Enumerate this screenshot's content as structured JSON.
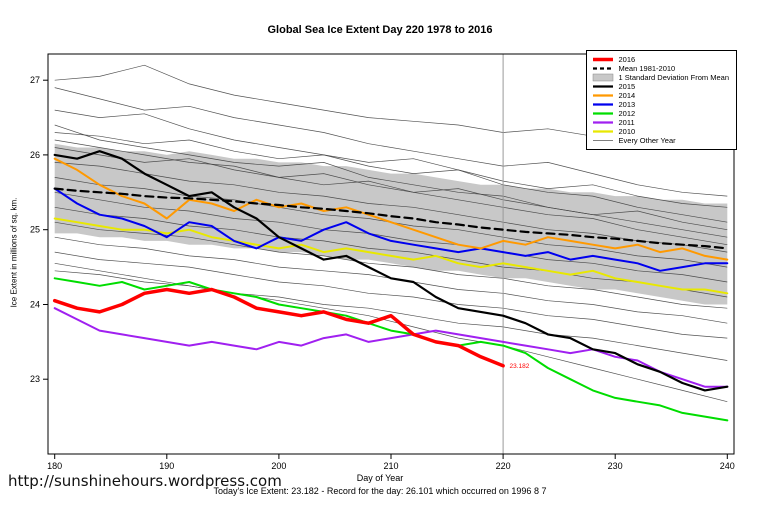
{
  "page": {
    "site_link": "http://sunshinehours.wordpress.com"
  },
  "chart_data": {
    "type": "line",
    "title": "Global Sea Ice Extent Day 220 1978 to 2016",
    "xlabel": "Day of Year",
    "ylabel": "Ice Extent in millions of sq. km.",
    "footnote": "Today's Ice Extent: 23.182  - Record for the day: 26.101 which occurred on 1996 8 7",
    "xlim": [
      179.4,
      240.6
    ],
    "ylim": [
      22.0,
      27.35
    ],
    "xticks": [
      180,
      190,
      200,
      210,
      220,
      230,
      240
    ],
    "yticks": [
      23,
      24,
      25,
      26,
      27
    ],
    "vline_x": 220,
    "vline_color": "#999999",
    "annotation": {
      "x": 220.3,
      "y": 23.18,
      "text": "23.182",
      "color": "#ff0000"
    },
    "x_main": [
      180,
      182,
      184,
      186,
      188,
      190,
      192,
      194,
      196,
      198,
      200,
      202,
      204,
      206,
      208,
      210,
      212,
      214,
      216,
      218,
      220,
      222,
      224,
      226,
      228,
      230,
      232,
      234,
      236,
      238,
      240
    ],
    "band": {
      "label": "1 Standard Deviation From Mean",
      "fill": "#c8c8c8",
      "upper": [
        26.15,
        26.1,
        26.1,
        26.05,
        26.05,
        26.0,
        26.05,
        26.0,
        25.95,
        25.95,
        25.9,
        25.9,
        25.85,
        25.85,
        25.8,
        25.75,
        25.75,
        25.7,
        25.65,
        25.6,
        25.6,
        25.55,
        25.55,
        25.5,
        25.5,
        25.45,
        25.45,
        25.4,
        25.4,
        25.35,
        25.35
      ],
      "lower": [
        24.95,
        24.95,
        24.9,
        24.9,
        24.85,
        24.85,
        24.8,
        24.8,
        24.75,
        24.75,
        24.7,
        24.7,
        24.65,
        24.6,
        24.6,
        24.55,
        24.5,
        24.45,
        24.45,
        24.4,
        24.35,
        24.35,
        24.3,
        24.25,
        24.2,
        24.2,
        24.15,
        24.1,
        24.05,
        24.0,
        24.0
      ]
    },
    "series": [
      {
        "name": "2010",
        "color": "#e8e800",
        "width": 2,
        "values": [
          25.15,
          25.1,
          25.05,
          25.0,
          25.0,
          24.95,
          25.0,
          24.9,
          24.85,
          24.8,
          24.75,
          24.8,
          24.7,
          24.75,
          24.7,
          24.65,
          24.6,
          24.65,
          24.55,
          24.5,
          24.55,
          24.5,
          24.45,
          24.4,
          24.45,
          24.35,
          24.3,
          24.25,
          24.2,
          24.2,
          24.15
        ]
      },
      {
        "name": "2011",
        "color": "#a020f0",
        "width": 2,
        "values": [
          23.95,
          23.8,
          23.65,
          23.6,
          23.55,
          23.5,
          23.45,
          23.5,
          23.45,
          23.4,
          23.5,
          23.45,
          23.55,
          23.6,
          23.5,
          23.55,
          23.6,
          23.65,
          23.6,
          23.55,
          23.5,
          23.45,
          23.4,
          23.35,
          23.4,
          23.3,
          23.25,
          23.1,
          23.0,
          22.9,
          22.9
        ]
      },
      {
        "name": "2012",
        "color": "#00dd00",
        "width": 2,
        "values": [
          24.35,
          24.3,
          24.25,
          24.3,
          24.2,
          24.25,
          24.3,
          24.2,
          24.15,
          24.1,
          24.0,
          23.95,
          23.9,
          23.85,
          23.75,
          23.65,
          23.6,
          23.5,
          23.45,
          23.5,
          23.45,
          23.35,
          23.15,
          23.0,
          22.85,
          22.75,
          22.7,
          22.65,
          22.55,
          22.5,
          22.45
        ]
      },
      {
        "name": "2013",
        "color": "#0000ee",
        "width": 2,
        "values": [
          25.55,
          25.35,
          25.2,
          25.15,
          25.05,
          24.9,
          25.1,
          25.05,
          24.85,
          24.75,
          24.9,
          24.85,
          25.0,
          25.1,
          24.95,
          24.85,
          24.8,
          24.75,
          24.7,
          24.75,
          24.7,
          24.65,
          24.7,
          24.6,
          24.65,
          24.6,
          24.55,
          24.45,
          24.5,
          24.55,
          24.55
        ]
      },
      {
        "name": "2014",
        "color": "#ff9900",
        "width": 2,
        "values": [
          25.95,
          25.8,
          25.6,
          25.45,
          25.35,
          25.15,
          25.4,
          25.35,
          25.25,
          25.4,
          25.3,
          25.35,
          25.25,
          25.3,
          25.2,
          25.1,
          25.0,
          24.9,
          24.8,
          24.75,
          24.85,
          24.8,
          24.9,
          24.85,
          24.8,
          24.75,
          24.8,
          24.7,
          24.75,
          24.65,
          24.6
        ]
      },
      {
        "name": "2015",
        "color": "#000000",
        "width": 2.2,
        "values": [
          26.0,
          25.95,
          26.05,
          25.95,
          25.75,
          25.6,
          25.45,
          25.5,
          25.3,
          25.15,
          24.9,
          24.75,
          24.6,
          24.65,
          24.5,
          24.35,
          24.3,
          24.1,
          23.95,
          23.9,
          23.85,
          23.75,
          23.6,
          23.55,
          23.4,
          23.35,
          23.2,
          23.1,
          22.95,
          22.85,
          22.9
        ]
      },
      {
        "name": "Mean 1981-2010",
        "color": "#000000",
        "width": 2.2,
        "dash": "8,5",
        "values": [
          25.55,
          25.52,
          25.5,
          25.48,
          25.45,
          25.43,
          25.42,
          25.4,
          25.38,
          25.35,
          25.33,
          25.3,
          25.28,
          25.25,
          25.22,
          25.18,
          25.15,
          25.1,
          25.07,
          25.03,
          25.0,
          24.97,
          24.95,
          24.93,
          24.9,
          24.88,
          24.85,
          24.82,
          24.8,
          24.78,
          24.75
        ]
      },
      {
        "name": "2016",
        "color": "#ff0000",
        "width": 3.5,
        "x": [
          180,
          182,
          184,
          186,
          188,
          190,
          192,
          194,
          196,
          198,
          200,
          202,
          204,
          206,
          208,
          210,
          212,
          214,
          216,
          218,
          220
        ],
        "values": [
          24.05,
          23.95,
          23.9,
          24.0,
          24.15,
          24.2,
          24.15,
          24.2,
          24.1,
          23.95,
          23.9,
          23.85,
          23.9,
          23.8,
          23.75,
          23.85,
          23.6,
          23.5,
          23.45,
          23.3,
          23.18
        ]
      }
    ],
    "background": {
      "label": "Every Other Year",
      "color": "#3f3f3f",
      "width": 0.7,
      "x": [
        180,
        184,
        188,
        192,
        196,
        200,
        204,
        208,
        212,
        216,
        220,
        224,
        228,
        232,
        236,
        240
      ],
      "lines": [
        [
          27.0,
          27.05,
          27.2,
          26.95,
          26.8,
          26.7,
          26.6,
          26.5,
          26.45,
          26.4,
          26.3,
          26.35,
          26.25,
          26.2,
          26.25,
          26.2
        ],
        [
          26.9,
          26.75,
          26.6,
          26.65,
          26.5,
          26.4,
          26.3,
          26.15,
          26.05,
          25.95,
          25.85,
          25.9,
          25.75,
          25.6,
          25.5,
          25.45
        ],
        [
          26.6,
          26.5,
          26.55,
          26.35,
          26.2,
          26.1,
          26.0,
          25.9,
          25.95,
          25.8,
          25.6,
          25.5,
          25.45,
          25.3,
          25.2,
          25.1
        ],
        [
          26.4,
          26.2,
          26.1,
          26.0,
          25.9,
          25.85,
          25.9,
          25.7,
          25.6,
          25.5,
          25.45,
          25.3,
          25.2,
          25.1,
          25.0,
          24.9
        ],
        [
          26.3,
          26.25,
          26.15,
          26.2,
          26.05,
          25.95,
          26.0,
          25.85,
          25.75,
          25.8,
          25.65,
          25.55,
          25.6,
          25.45,
          25.35,
          25.3
        ],
        [
          26.2,
          26.1,
          26.0,
          25.9,
          25.85,
          25.7,
          25.6,
          25.65,
          25.5,
          25.4,
          25.3,
          25.2,
          25.15,
          25.0,
          24.9,
          24.8
        ],
        [
          26.1,
          26.0,
          25.9,
          25.95,
          25.8,
          25.7,
          25.75,
          25.6,
          25.5,
          25.55,
          25.4,
          25.3,
          25.2,
          25.25,
          25.1,
          25.0
        ],
        [
          25.9,
          25.85,
          25.75,
          25.65,
          25.6,
          25.5,
          25.45,
          25.35,
          25.3,
          25.2,
          25.1,
          25.0,
          24.95,
          24.85,
          24.8,
          24.7
        ],
        [
          25.7,
          25.6,
          25.55,
          25.45,
          25.4,
          25.3,
          25.2,
          25.15,
          25.05,
          25.0,
          24.9,
          24.8,
          24.75,
          24.65,
          24.6,
          24.5
        ],
        [
          25.5,
          25.4,
          25.3,
          25.25,
          25.15,
          25.1,
          25.0,
          24.95,
          24.85,
          24.8,
          24.7,
          24.6,
          24.55,
          24.45,
          24.4,
          24.3
        ],
        [
          25.3,
          25.2,
          25.15,
          25.05,
          25.0,
          24.9,
          24.85,
          24.75,
          24.7,
          24.6,
          24.5,
          24.45,
          24.35,
          24.3,
          24.2,
          24.1
        ],
        [
          25.1,
          25.0,
          24.95,
          24.9,
          24.8,
          24.7,
          24.65,
          24.55,
          24.5,
          24.4,
          24.35,
          24.25,
          24.2,
          24.1,
          24.0,
          23.95
        ],
        [
          24.9,
          24.8,
          24.75,
          24.65,
          24.6,
          24.5,
          24.45,
          24.4,
          24.3,
          24.2,
          24.15,
          24.05,
          24.0,
          23.9,
          23.85,
          23.75
        ],
        [
          24.7,
          24.6,
          24.55,
          24.5,
          24.4,
          24.3,
          24.25,
          24.15,
          24.1,
          24.0,
          23.95,
          23.85,
          23.8,
          23.7,
          23.6,
          23.55
        ],
        [
          24.45,
          24.4,
          24.3,
          24.25,
          24.15,
          24.1,
          24.0,
          23.95,
          23.85,
          23.75,
          23.7,
          23.6,
          23.55,
          23.45,
          23.35,
          23.25
        ],
        [
          24.55,
          24.45,
          24.35,
          24.25,
          24.15,
          24.05,
          23.95,
          23.85,
          23.7,
          23.55,
          23.45,
          23.3,
          23.15,
          23.0,
          22.85,
          22.7
        ]
      ]
    },
    "legend": [
      {
        "label": "2016",
        "swatch": "line-thick",
        "color": "#ff0000"
      },
      {
        "label": "Mean 1981-2010",
        "swatch": "line-dashed",
        "color": "#000000"
      },
      {
        "label": "1 Standard Deviation From Mean",
        "swatch": "box",
        "color": "#c8c8c8"
      },
      {
        "label": "2015",
        "swatch": "line",
        "color": "#000000"
      },
      {
        "label": "2014",
        "swatch": "line",
        "color": "#ff9900"
      },
      {
        "label": "2013",
        "swatch": "line",
        "color": "#0000ee"
      },
      {
        "label": "2012",
        "swatch": "line",
        "color": "#00dd00"
      },
      {
        "label": "2011",
        "swatch": "line",
        "color": "#a020f0"
      },
      {
        "label": "2010",
        "swatch": "line",
        "color": "#e8e800"
      },
      {
        "label": "Every Other Year",
        "swatch": "line-thin",
        "color": "#555555"
      }
    ]
  }
}
